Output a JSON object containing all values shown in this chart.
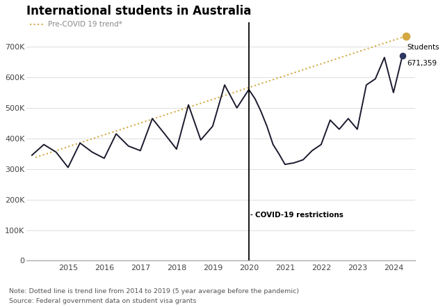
{
  "title": "International students in Australia",
  "legend_label": "Pre-COVID 19 trend*",
  "note": "Note: Dotted line is trend line from 2014 to 2019 (5 year average before the pandemic)",
  "source": "Source: Federal government data on student visa grants",
  "covid_label": "COVID-19 restrictions",
  "students_label_line1": "Students",
  "students_label_line2": "671,359",
  "background_color": "#ffffff",
  "line_color": "#1a1a2e",
  "trend_color": "#d4a843",
  "trend_dot_color": "#d4a843",
  "students_dot_color": "#2d3561",
  "covid_line_x": 2020.0,
  "student_data": {
    "x": [
      2014.0,
      2014.33,
      2014.67,
      2015.0,
      2015.33,
      2015.67,
      2016.0,
      2016.33,
      2016.67,
      2017.0,
      2017.33,
      2017.67,
      2018.0,
      2018.33,
      2018.67,
      2019.0,
      2019.33,
      2019.67,
      2020.0,
      2020.17,
      2020.33,
      2020.5,
      2020.67,
      2020.83,
      2021.0,
      2021.25,
      2021.5,
      2021.75,
      2022.0,
      2022.25,
      2022.5,
      2022.75,
      2023.0,
      2023.25,
      2023.5,
      2023.75,
      2024.0,
      2024.25
    ],
    "y": [
      345000,
      380000,
      355000,
      305000,
      385000,
      355000,
      335000,
      415000,
      375000,
      360000,
      465000,
      415000,
      365000,
      510000,
      395000,
      440000,
      575000,
      500000,
      560000,
      530000,
      490000,
      440000,
      380000,
      350000,
      315000,
      320000,
      330000,
      360000,
      380000,
      460000,
      430000,
      465000,
      430000,
      575000,
      595000,
      665000,
      550000,
      671359
    ]
  },
  "trend_data": {
    "x": [
      2014.1,
      2024.35
    ],
    "y": [
      338000,
      735000
    ]
  },
  "ylim": [
    0,
    780000
  ],
  "yticks": [
    0,
    100000,
    200000,
    300000,
    400000,
    500000,
    600000,
    700000
  ],
  "xlim": [
    2013.85,
    2024.6
  ],
  "xticks": [
    2015.0,
    2016.0,
    2017.0,
    2018.0,
    2019.0,
    2020.0,
    2021.0,
    2022.0,
    2023.0,
    2024.0
  ],
  "xticklabels": [
    "2015",
    "2016",
    "2017",
    "2018",
    "2019",
    "2020",
    "2021",
    "2022",
    "2023",
    "2024"
  ]
}
